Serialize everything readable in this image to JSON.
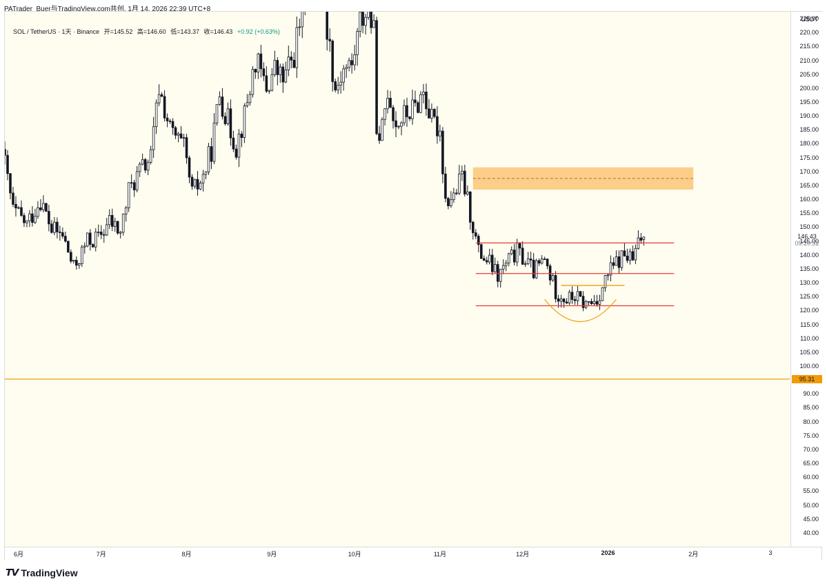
{
  "header": "PATrader_Buer与TradingView.com共创, 1月 14, 2026 22:39 UTC+8",
  "symbol": {
    "name": "SOL / TetherUS · 1天 · Binance",
    "open": "开=145.52",
    "high": "高=146.60",
    "low": "低=143.37",
    "close": "收=146.43",
    "change": "+0.92 (+0.63%)"
  },
  "currency": "USDT",
  "last_price": "146.43",
  "countdown": "09:20:32",
  "horizontal_line_label": "95.31",
  "branding": "TradingView",
  "colors": {
    "bull": "#ffffff",
    "bear": "#131722",
    "wick": "#131722",
    "resistance": "#e53935",
    "highlight_line": "#f29b08",
    "zone_fill": "#fcc676",
    "plot_bg": "#fffdf0"
  },
  "chart_data": {
    "type": "candlestick",
    "ylim": [
      35,
      227.5
    ],
    "yticks": [
      "225.00",
      "220.00",
      "215.00",
      "210.00",
      "205.00",
      "200.00",
      "195.00",
      "190.00",
      "185.00",
      "180.00",
      "175.00",
      "170.00",
      "165.00",
      "160.00",
      "155.00",
      "150.00",
      "145.00",
      "140.00",
      "135.00",
      "130.00",
      "125.00",
      "120.00",
      "115.00",
      "110.00",
      "105.00",
      "100.00",
      "95.00",
      "90.00",
      "85.00",
      "80.00",
      "75.00",
      "70.00",
      "65.00",
      "60.00",
      "55.00",
      "50.00",
      "45.00",
      "40.00"
    ],
    "xticks": [
      {
        "label": "6月",
        "date": "2025-06-01"
      },
      {
        "label": "7月",
        "date": "2025-07-01"
      },
      {
        "label": "8月",
        "date": "2025-08-01"
      },
      {
        "label": "9月",
        "date": "2025-09-01"
      },
      {
        "label": "10月",
        "date": "2025-10-01"
      },
      {
        "label": "11月",
        "date": "2025-11-01"
      },
      {
        "label": "12月",
        "date": "2025-12-01"
      },
      {
        "label": "2026",
        "date": "2026-01-01"
      },
      {
        "label": "2月",
        "date": "2026-02-01"
      },
      {
        "label": "3",
        "date": "2026-03-01"
      }
    ],
    "x_range": [
      "2025-05-27",
      "2026-03-08"
    ],
    "path": [
      [
        "2025-05-27",
        178
      ],
      [
        "2025-05-31",
        156
      ],
      [
        "2025-06-05",
        151
      ],
      [
        "2025-06-10",
        160
      ],
      [
        "2025-06-14",
        149
      ],
      [
        "2025-06-18",
        147
      ],
      [
        "2025-06-22",
        135
      ],
      [
        "2025-06-27",
        145
      ],
      [
        "2025-07-01",
        146
      ],
      [
        "2025-07-05",
        152
      ],
      [
        "2025-07-09",
        148
      ],
      [
        "2025-07-12",
        163
      ],
      [
        "2025-07-16",
        170
      ],
      [
        "2025-07-20",
        175
      ],
      [
        "2025-07-23",
        200
      ],
      [
        "2025-07-27",
        185
      ],
      [
        "2025-08-01",
        178
      ],
      [
        "2025-08-04",
        162
      ],
      [
        "2025-08-08",
        168
      ],
      [
        "2025-08-11",
        178
      ],
      [
        "2025-08-14",
        198
      ],
      [
        "2025-08-17",
        188
      ],
      [
        "2025-08-20",
        179
      ],
      [
        "2025-08-23",
        190
      ],
      [
        "2025-08-27",
        210
      ],
      [
        "2025-08-31",
        200
      ],
      [
        "2025-09-03",
        207
      ],
      [
        "2025-09-06",
        203
      ],
      [
        "2025-09-10",
        212
      ],
      [
        "2025-09-14",
        235
      ],
      [
        "2025-09-18",
        243
      ],
      [
        "2025-09-22",
        222
      ],
      [
        "2025-09-25",
        200
      ],
      [
        "2025-09-28",
        207
      ],
      [
        "2025-10-01",
        208
      ],
      [
        "2025-10-04",
        224
      ],
      [
        "2025-10-07",
        229
      ],
      [
        "2025-10-09",
        219
      ],
      [
        "2025-10-10",
        188
      ],
      [
        "2025-10-11",
        178
      ],
      [
        "2025-10-14",
        200
      ],
      [
        "2025-10-17",
        187
      ],
      [
        "2025-10-20",
        190
      ],
      [
        "2025-10-24",
        193
      ],
      [
        "2025-10-27",
        199
      ],
      [
        "2025-10-30",
        188
      ],
      [
        "2025-11-02",
        185
      ],
      [
        "2025-11-04",
        160
      ],
      [
        "2025-11-07",
        161
      ],
      [
        "2025-11-10",
        168
      ],
      [
        "2025-11-13",
        155
      ],
      [
        "2025-11-16",
        141
      ],
      [
        "2025-11-20",
        137
      ],
      [
        "2025-11-23",
        132
      ],
      [
        "2025-11-27",
        138
      ],
      [
        "2025-11-30",
        141
      ],
      [
        "2025-12-03",
        138
      ],
      [
        "2025-12-06",
        134
      ],
      [
        "2025-12-10",
        138
      ],
      [
        "2025-12-14",
        127
      ],
      [
        "2025-12-18",
        124
      ],
      [
        "2025-12-21",
        125
      ],
      [
        "2025-12-25",
        122
      ],
      [
        "2025-12-29",
        124
      ],
      [
        "2026-01-02",
        133
      ],
      [
        "2026-01-05",
        137
      ],
      [
        "2026-01-08",
        140
      ],
      [
        "2026-01-11",
        138
      ],
      [
        "2026-01-14",
        146.43
      ]
    ],
    "last_candle": {
      "date": "2026-01-14",
      "open": 145.52,
      "high": 146.6,
      "low": 143.37,
      "close": 146.43
    },
    "annotations": [
      {
        "type": "zone",
        "y1": 163.5,
        "y2": 171.5,
        "x1": "2025-11-13",
        "x2": "2026-02-01",
        "mid": 167.5
      },
      {
        "type": "hline",
        "y": 144.3,
        "x1": "2025-11-14",
        "x2": "2026-01-25",
        "color": "resistance"
      },
      {
        "type": "hline",
        "y": 133.3,
        "x1": "2025-11-14",
        "x2": "2026-01-25",
        "color": "resistance"
      },
      {
        "type": "hline",
        "y": 121.7,
        "x1": "2025-11-14",
        "x2": "2026-01-25",
        "color": "resistance"
      },
      {
        "type": "hline",
        "y": 129.0,
        "x1": "2025-12-15",
        "x2": "2026-01-07",
        "color": "highlight_line"
      },
      {
        "type": "arc",
        "cx": "2025-12-22",
        "cy": 124,
        "x1": "2025-12-09",
        "x2": "2026-01-04",
        "depth": 8,
        "color": "highlight_line"
      },
      {
        "type": "hline",
        "y": 95.31,
        "x1": "2025-05-27",
        "x2": "2026-03-08",
        "color": "highlight_line"
      }
    ]
  }
}
